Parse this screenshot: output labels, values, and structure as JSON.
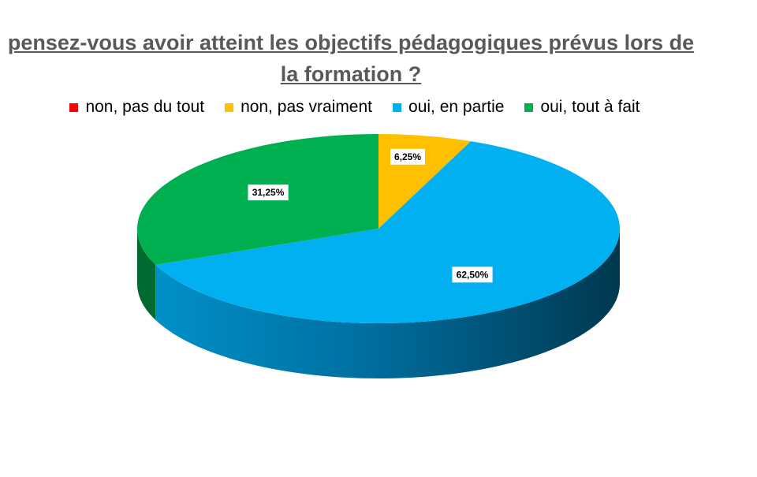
{
  "chart_data": {
    "type": "pie",
    "title": "pensez-vous avoir atteint les objectifs pédagogiques prévus lors de la formation ?",
    "categories": [
      "non, pas du tout",
      "non, pas vraiment",
      "oui, en partie",
      "oui, tout à fait"
    ],
    "values": [
      0,
      6.25,
      62.5,
      31.25
    ],
    "data_labels": [
      "",
      "6,25%",
      "62,50%",
      "31,25%"
    ],
    "colors": [
      "#ff0000",
      "#ffc000",
      "#00b0f0",
      "#00b050"
    ],
    "legend_position": "top",
    "style": "3d"
  }
}
